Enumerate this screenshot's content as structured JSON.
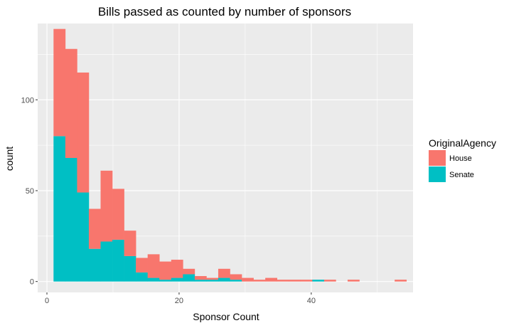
{
  "chart_data": {
    "type": "bar",
    "stacked": true,
    "histogram": true,
    "title": "Bills passed as counted by number of sponsors",
    "xlabel": "Sponsor Count",
    "ylabel": "count",
    "xlim": [
      -1.4,
      55.4
    ],
    "ylim": [
      -6,
      142
    ],
    "xticks": [
      0,
      20,
      40
    ],
    "yticks": [
      0,
      50,
      100
    ],
    "xtick_labels": [
      "0",
      "20",
      "40"
    ],
    "ytick_labels": [
      "0",
      "50",
      "100"
    ],
    "bin_width": 1.78,
    "bin_starts": [
      1.0,
      2.78,
      4.56,
      6.34,
      8.12,
      9.9,
      11.68,
      13.46,
      15.24,
      17.02,
      18.8,
      20.58,
      22.36,
      24.14,
      25.92,
      27.7,
      29.48,
      31.26,
      33.04,
      34.82,
      36.6,
      38.38,
      40.16,
      41.94,
      43.72,
      45.5,
      47.28,
      49.06,
      50.84,
      52.62
    ],
    "grid": true,
    "legend": {
      "title": "OriginalAgency",
      "position": "right",
      "entries": [
        "House",
        "Senate"
      ]
    },
    "colors": {
      "House": "#F8766D",
      "Senate": "#00BFC4",
      "panel": "#EBEBEB",
      "grid": "#FFFFFF"
    },
    "series": [
      {
        "name": "Senate",
        "values": [
          80,
          68,
          49,
          18,
          22,
          23,
          14,
          5,
          2,
          1,
          2,
          4,
          1,
          1,
          2,
          1,
          0,
          0,
          0,
          0,
          0,
          0,
          1,
          0,
          0,
          0,
          0,
          0,
          0,
          0
        ]
      },
      {
        "name": "House",
        "values": [
          59,
          60,
          66,
          22,
          39,
          28,
          14,
          8,
          13,
          10,
          10,
          3,
          2,
          1,
          5,
          3,
          2,
          1,
          2,
          1,
          1,
          1,
          0,
          1,
          0,
          1,
          0,
          0,
          0,
          1
        ]
      }
    ]
  }
}
